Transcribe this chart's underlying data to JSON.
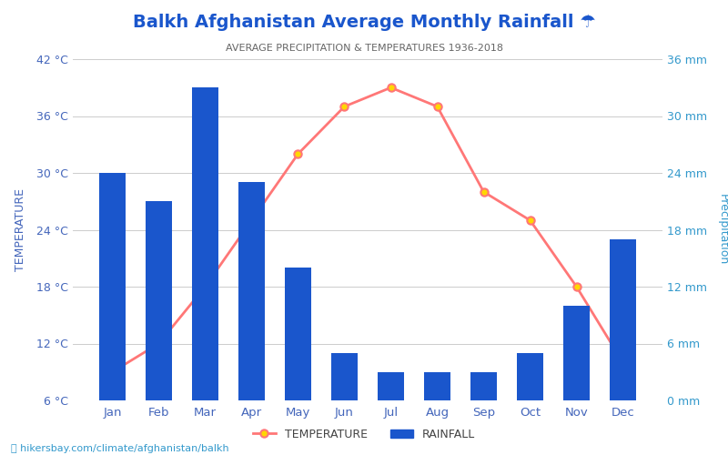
{
  "title": "Balkh Afghanistan Average Monthly Rainfall ☂",
  "subtitle": "AVERAGE PRECIPITATION & TEMPERATURES 1936-2018",
  "months": [
    "Jan",
    "Feb",
    "Mar",
    "Apr",
    "May",
    "Jun",
    "Jul",
    "Aug",
    "Sep",
    "Oct",
    "Nov",
    "Dec"
  ],
  "rainfall_mm": [
    24,
    21,
    33,
    23,
    14,
    5,
    3,
    3,
    3,
    5,
    10,
    17
  ],
  "temperature_c": [
    9,
    12,
    18,
    25,
    32,
    37,
    39,
    37,
    28,
    25,
    18,
    10
  ],
  "bar_color": "#1A56CC",
  "line_color": "#FF7777",
  "marker_face": "#FFD700",
  "marker_edge": "#FF7777",
  "temp_ylim": [
    6,
    42
  ],
  "temp_yticks": [
    6,
    12,
    18,
    24,
    30,
    36,
    42
  ],
  "temp_yticklabels": [
    "6 °C",
    "12 °C",
    "18 °C",
    "24 °C",
    "30 °C",
    "36 °C",
    "42 °C"
  ],
  "precip_ylim": [
    0,
    36
  ],
  "precip_yticks": [
    0,
    6,
    12,
    18,
    24,
    30,
    36
  ],
  "precip_yticklabels": [
    "0 mm",
    "6 mm",
    "12 mm",
    "18 mm",
    "24 mm",
    "30 mm",
    "36 mm"
  ],
  "ylabel_left": "TEMPERATURE",
  "ylabel_right": "Precipitation",
  "left_label_color": "#4466BB",
  "right_label_color": "#3399CC",
  "left_tick_color": "#4466BB",
  "right_tick_color": "#3399CC",
  "title_color": "#1A56CC",
  "subtitle_color": "#666666",
  "watermark": "hikersbay.com/climate/afghanistan/balkh",
  "background_color": "#FFFFFF",
  "grid_color": "#CCCCCC"
}
